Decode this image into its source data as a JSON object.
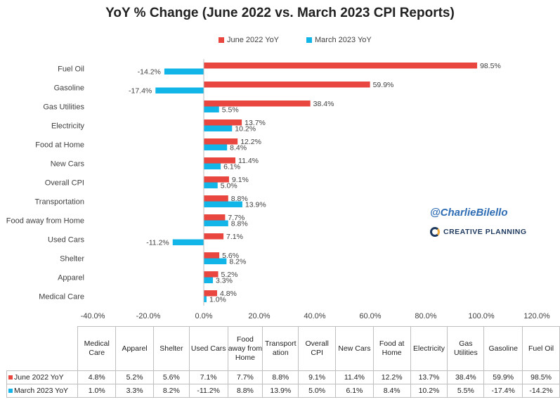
{
  "chart_data": {
    "type": "bar",
    "orientation": "horizontal",
    "title": "YoY % Change (June 2022 vs. March 2023 CPI Reports)",
    "categories": [
      "Fuel Oil",
      "Gasoline",
      "Gas Utilities",
      "Electricity",
      "Food at Home",
      "New Cars",
      "Overall CPI",
      "Transportation",
      "Food away from Home",
      "Used Cars",
      "Shelter",
      "Apparel",
      "Medical Care"
    ],
    "series": [
      {
        "name": "June 2022 YoY",
        "color": "#e8463f",
        "values": [
          98.5,
          59.9,
          38.4,
          13.7,
          12.2,
          11.4,
          9.1,
          8.8,
          7.7,
          7.1,
          5.6,
          5.2,
          4.8
        ]
      },
      {
        "name": "March 2023 YoY",
        "color": "#12b5e8",
        "values": [
          -14.2,
          -17.4,
          5.5,
          10.2,
          8.4,
          6.1,
          5.0,
          13.9,
          8.8,
          -11.2,
          8.2,
          3.3,
          1.0
        ]
      }
    ],
    "xlim": [
      -40,
      120
    ],
    "xticks": [
      -40,
      -20,
      0,
      20,
      40,
      60,
      80,
      100,
      120
    ],
    "xtick_labels": [
      "-40.0%",
      "-20.0%",
      "0.0%",
      "20.0%",
      "40.0%",
      "60.0%",
      "80.0%",
      "100.0%",
      "120.0%"
    ],
    "legend": "top-center",
    "grid": false
  },
  "watermark": "@CharlieBilello",
  "brand": "CREATIVE PLANNING",
  "table": {
    "headers": [
      "Medical Care",
      "Apparel",
      "Shelter",
      "Used Cars",
      "Food away from Home",
      "Transport ation",
      "Overall CPI",
      "New Cars",
      "Food at Home",
      "Electricity",
      "Gas Utilities",
      "Gasoline",
      "Fuel Oil"
    ],
    "rows": [
      {
        "label": "June 2022 YoY",
        "color": "#e8463f",
        "values": [
          "4.8%",
          "5.2%",
          "5.6%",
          "7.1%",
          "7.7%",
          "8.8%",
          "9.1%",
          "11.4%",
          "12.2%",
          "13.7%",
          "38.4%",
          "59.9%",
          "98.5%"
        ]
      },
      {
        "label": "March 2023 YoY",
        "color": "#12b5e8",
        "values": [
          "1.0%",
          "3.3%",
          "8.2%",
          "-11.2%",
          "8.8%",
          "13.9%",
          "5.0%",
          "6.1%",
          "8.4%",
          "10.2%",
          "5.5%",
          "-17.4%",
          "-14.2%"
        ]
      }
    ]
  }
}
